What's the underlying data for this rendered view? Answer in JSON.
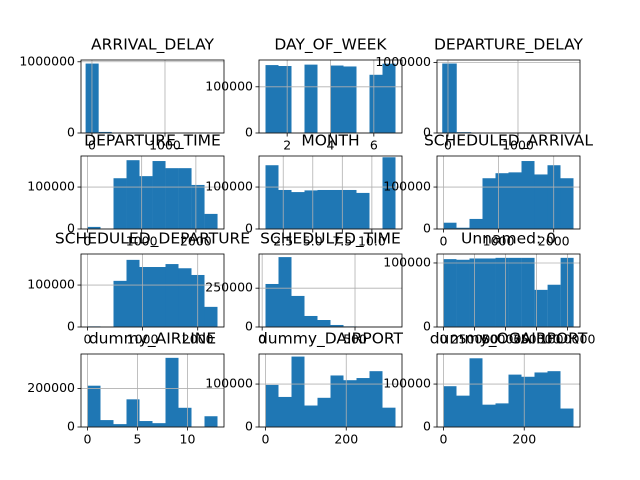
{
  "chart_data": [
    {
      "type": "histogram",
      "title": "ARRIVAL_DELAY",
      "color": "#1f77b4",
      "grid": true,
      "bins": [
        -87,
        91.9,
        270.8,
        449.7,
        628.6,
        807.5,
        986.4,
        1165.3,
        1344.2,
        1523.1,
        1702
      ],
      "counts": [
        975000,
        15000,
        1500,
        300,
        100,
        40,
        10,
        5,
        2,
        1
      ],
      "xlim": [
        -150,
        1808
      ],
      "xticks": [
        0,
        1000
      ],
      "ylim": [
        0,
        1025000
      ],
      "yticks": [
        0,
        1000000
      ]
    },
    {
      "type": "histogram",
      "title": "DAY_OF_WEEK",
      "color": "#1f77b4",
      "grid": true,
      "bins": [
        1,
        1.6,
        2.2,
        2.8,
        3.4,
        4,
        4.6,
        5.2,
        5.8,
        6.4,
        7
      ],
      "counts": [
        147000,
        145000,
        0,
        148000,
        0,
        146000,
        144000,
        0,
        126000,
        150000
      ],
      "xlim": [
        0.7,
        7.3
      ],
      "xticks": [
        2,
        4,
        6
      ],
      "ylim": [
        0,
        158000
      ],
      "yticks": [
        0,
        100000
      ]
    },
    {
      "type": "histogram",
      "title": "DEPARTURE_DELAY",
      "color": "#1f77b4",
      "grid": true,
      "bins": [
        -82,
        125,
        332,
        539,
        746,
        953,
        1160,
        1367,
        1574,
        1781,
        1988
      ],
      "counts": [
        985000,
        12000,
        1500,
        300,
        100,
        40,
        15,
        5,
        2,
        1
      ],
      "xlim": [
        -157,
        1886
      ],
      "xticks": [
        0,
        1000
      ],
      "ylim": [
        0,
        1035000
      ],
      "yticks": [
        0,
        1000000
      ]
    },
    {
      "type": "histogram",
      "title": "DEPARTURE_TIME",
      "color": "#1f77b4",
      "grid": true,
      "bins": [
        1,
        240.9,
        480.8,
        720.7,
        960.6,
        1200.5,
        1440.4,
        1680.3,
        1920.2,
        2160.1,
        2400
      ],
      "counts": [
        5000,
        1000,
        121000,
        164000,
        126000,
        162000,
        145000,
        145000,
        105000,
        36000
      ],
      "xlim": [
        -119,
        2519
      ],
      "xticks": [
        0,
        1000,
        2000
      ],
      "ylim": [
        0,
        174000
      ],
      "yticks": [
        0,
        100000
      ]
    },
    {
      "type": "histogram",
      "title": "MONTH",
      "color": "#1f77b4",
      "grid": true,
      "bins": [
        1,
        2.1,
        3.2,
        4.3,
        5.4,
        6.5,
        7.6,
        8.7,
        9.8,
        10.9,
        12
      ],
      "counts": [
        152000,
        93000,
        88000,
        92000,
        93000,
        93000,
        93000,
        86000,
        0,
        171000
      ],
      "xlim": [
        0.45,
        12.55
      ],
      "xticks": [
        2.5,
        {
          "value": 5,
          "label": "5.0"
        },
        7.5,
        {
          "value": 10,
          "label": "10.0"
        }
      ],
      "ylim": [
        0,
        174000
      ],
      "yticks": [
        0,
        100000
      ]
    },
    {
      "type": "histogram",
      "title": "SCHEDULED_ARRIVAL",
      "color": "#1f77b4",
      "grid": true,
      "bins": [
        1,
        236.8,
        472.6,
        708.4,
        944.2,
        1180,
        1415.8,
        1651.6,
        1887.4,
        2123.2,
        2359
      ],
      "counts": [
        15000,
        3000,
        24000,
        121000,
        133000,
        135000,
        162000,
        130000,
        152000,
        121000
      ],
      "xlim": [
        -117,
        2477
      ],
      "xticks": [
        0,
        1000,
        2000
      ],
      "ylim": [
        0,
        174000
      ],
      "yticks": [
        0,
        100000
      ]
    },
    {
      "type": "histogram",
      "title": "SCHEDULED_DEPARTURE",
      "color": "#1f77b4",
      "grid": true,
      "bins": [
        1,
        236.8,
        472.6,
        708.4,
        944.2,
        1180,
        1415.8,
        1651.6,
        1887.4,
        2123.2,
        2359
      ],
      "counts": [
        1500,
        500,
        110000,
        160000,
        143000,
        143000,
        150000,
        140000,
        124000,
        48000
      ],
      "xlim": [
        -117,
        2477
      ],
      "xticks": [
        0,
        1000,
        2000
      ],
      "ylim": [
        0,
        174000
      ],
      "yticks": [
        0,
        100000
      ]
    },
    {
      "type": "histogram",
      "title": "SCHEDULED_TIME",
      "color": "#1f77b4",
      "grid": true,
      "bins": [
        18,
        88,
        158,
        228,
        298,
        368,
        438,
        508,
        578,
        648,
        718
      ],
      "counts": [
        277000,
        450000,
        200000,
        71000,
        45000,
        13000,
        4000,
        700,
        150,
        40
      ],
      "xlim": [
        -17,
        753
      ],
      "xticks": [
        0,
        500
      ],
      "ylim": [
        0,
        470000
      ],
      "yticks": [
        0,
        250000
      ]
    },
    {
      "type": "histogram",
      "title": "Unnamed: 0",
      "color": "#1f77b4",
      "grid": true,
      "bins": [
        0,
        104857.5,
        209715,
        314572.5,
        419430,
        524287.5,
        629145,
        734002.5,
        838860,
        943717.5,
        1048575
      ],
      "counts": [
        106000,
        105000,
        107000,
        107000,
        108000,
        108000,
        108000,
        58000,
        66000,
        108000
      ],
      "xlim": [
        -52000,
        1100000
      ],
      "xticks": [
        0,
        250000,
        500000,
        750000,
        1000000
      ],
      "ylim": [
        0,
        114000
      ],
      "yticks": [
        0,
        100000
      ]
    },
    {
      "type": "histogram",
      "title": "dummy_AIRLINE",
      "color": "#1f77b4",
      "grid": true,
      "bins": [
        0,
        1.3,
        2.6,
        3.9,
        5.2,
        6.5,
        7.8,
        9.1,
        10.4,
        11.7,
        13
      ],
      "counts": [
        215000,
        36000,
        15000,
        144000,
        31000,
        20000,
        360000,
        100000,
        0,
        56000
      ],
      "xlim": [
        -0.65,
        13.65
      ],
      "xticks": [
        0,
        5,
        10
      ],
      "ylim": [
        0,
        380000
      ],
      "yticks": [
        0,
        200000
      ]
    },
    {
      "type": "histogram",
      "title": "dummy_DAIRPORT",
      "color": "#1f77b4",
      "grid": true,
      "bins": [
        0,
        32.2,
        64.4,
        96.6,
        128.8,
        161,
        193.2,
        225.4,
        257.6,
        289.8,
        322
      ],
      "counts": [
        98000,
        70000,
        164000,
        50000,
        68000,
        120000,
        109000,
        114000,
        130000,
        45000
      ],
      "xlim": [
        -16.1,
        338.1
      ],
      "xticks": [
        0,
        200
      ],
      "ylim": [
        0,
        170000
      ],
      "yticks": [
        0,
        100000
      ]
    },
    {
      "type": "histogram",
      "title": "dummy_OGAIRPORT",
      "color": "#1f77b4",
      "grid": true,
      "bins": [
        0,
        32.2,
        64.4,
        96.6,
        128.8,
        161,
        193.2,
        225.4,
        257.6,
        289.8,
        322
      ],
      "counts": [
        95000,
        73000,
        160000,
        52000,
        55000,
        122000,
        117000,
        127000,
        130000,
        43000
      ],
      "xlim": [
        -16.1,
        338.1
      ],
      "xticks": [
        0,
        200
      ],
      "ylim": [
        0,
        170000
      ],
      "yticks": [
        0,
        100000
      ]
    }
  ]
}
